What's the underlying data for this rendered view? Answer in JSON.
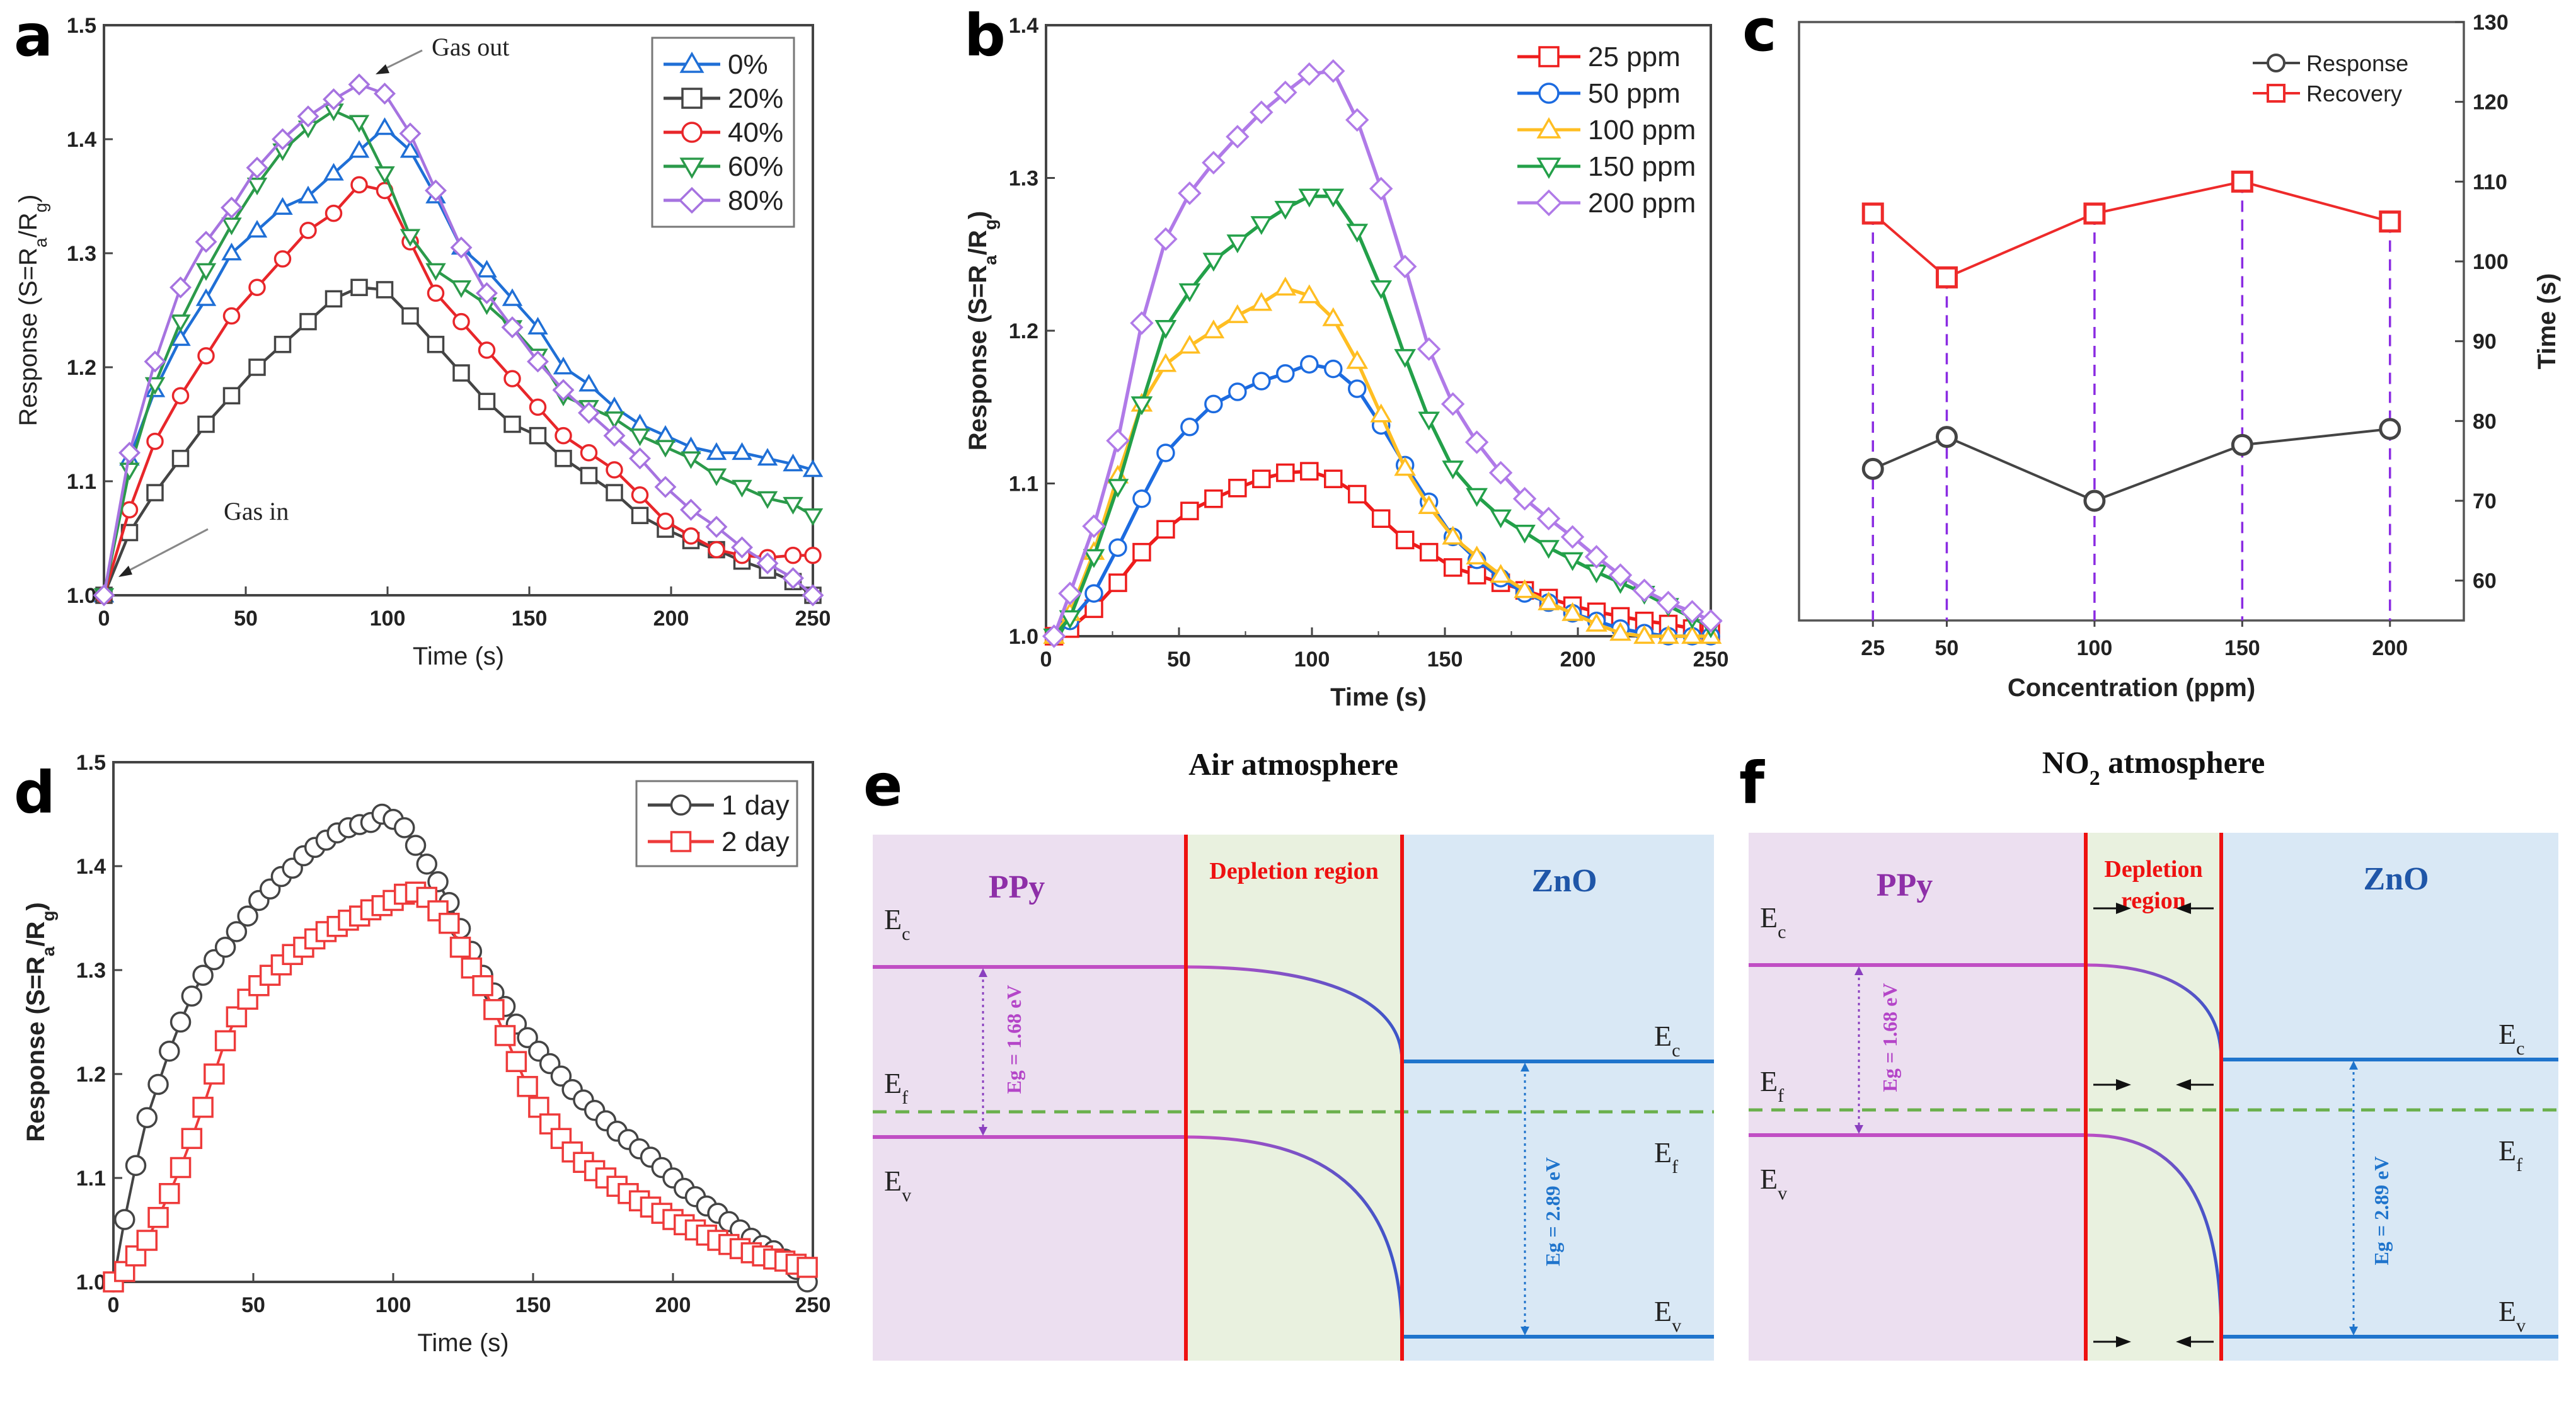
{
  "figure": {
    "panels": [
      "a",
      "b",
      "c",
      "d",
      "e",
      "f"
    ]
  },
  "chart_data": [
    {
      "id": "a",
      "panel_label": "a",
      "type": "line",
      "title": "",
      "xlabel": "Time (s)",
      "ylabel": "Response (S=Ra/Rg)",
      "xlim": [
        0,
        250
      ],
      "ylim": [
        1.0,
        1.5
      ],
      "xticks": [
        0,
        50,
        100,
        150,
        200,
        250
      ],
      "yticks": [
        1.0,
        1.1,
        1.2,
        1.3,
        1.4,
        1.5
      ],
      "grid": false,
      "legend_position": "top-right",
      "annotations": [
        {
          "text": "Gas out",
          "x": 95,
          "y": 1.445
        },
        {
          "text": "Gas in",
          "x": 2,
          "y": 1.005
        }
      ],
      "x": [
        0,
        9,
        18,
        27,
        36,
        45,
        54,
        63,
        72,
        81,
        90,
        99,
        108,
        117,
        126,
        135,
        144,
        153,
        162,
        171,
        180,
        189,
        198,
        207,
        216,
        225,
        234,
        243,
        250
      ],
      "series": [
        {
          "name": "0%",
          "color": "#1f6fd6",
          "marker": "triangle-up",
          "values": [
            1.0,
            1.12,
            1.18,
            1.225,
            1.26,
            1.3,
            1.32,
            1.34,
            1.35,
            1.37,
            1.39,
            1.41,
            1.39,
            1.35,
            1.305,
            1.285,
            1.26,
            1.235,
            1.2,
            1.185,
            1.165,
            1.15,
            1.14,
            1.13,
            1.125,
            1.125,
            1.12,
            1.115,
            1.11
          ]
        },
        {
          "name": "20%",
          "color": "#444444",
          "marker": "square",
          "values": [
            1.0,
            1.055,
            1.09,
            1.12,
            1.15,
            1.175,
            1.2,
            1.22,
            1.24,
            1.26,
            1.27,
            1.268,
            1.245,
            1.22,
            1.195,
            1.17,
            1.15,
            1.14,
            1.12,
            1.105,
            1.09,
            1.07,
            1.058,
            1.048,
            1.04,
            1.03,
            1.022,
            1.012,
            1.0
          ]
        },
        {
          "name": "40%",
          "color": "#e8262a",
          "marker": "circle",
          "values": [
            1.0,
            1.075,
            1.135,
            1.175,
            1.21,
            1.245,
            1.27,
            1.295,
            1.32,
            1.335,
            1.36,
            1.355,
            1.31,
            1.265,
            1.24,
            1.215,
            1.19,
            1.165,
            1.14,
            1.125,
            1.11,
            1.088,
            1.065,
            1.052,
            1.04,
            1.035,
            1.033,
            1.035,
            1.035
          ]
        },
        {
          "name": "60%",
          "color": "#2b9a4a",
          "marker": "triangle-down",
          "values": [
            1.0,
            1.11,
            1.185,
            1.24,
            1.285,
            1.325,
            1.36,
            1.39,
            1.41,
            1.425,
            1.415,
            1.37,
            1.315,
            1.285,
            1.27,
            1.255,
            1.235,
            1.21,
            1.175,
            1.165,
            1.155,
            1.14,
            1.13,
            1.12,
            1.105,
            1.095,
            1.085,
            1.08,
            1.07
          ]
        },
        {
          "name": "80%",
          "color": "#a673e0",
          "marker": "diamond",
          "values": [
            1.0,
            1.125,
            1.205,
            1.27,
            1.31,
            1.34,
            1.375,
            1.4,
            1.42,
            1.435,
            1.448,
            1.44,
            1.405,
            1.355,
            1.305,
            1.265,
            1.235,
            1.205,
            1.18,
            1.16,
            1.14,
            1.12,
            1.095,
            1.075,
            1.06,
            1.042,
            1.028,
            1.015,
            1.0
          ]
        }
      ]
    },
    {
      "id": "b",
      "panel_label": "b",
      "type": "line",
      "title": "",
      "xlabel": "Time (s)",
      "ylabel": "Response (S=Ra/Rg)",
      "xlim": [
        0,
        250
      ],
      "ylim": [
        1.0,
        1.4
      ],
      "xticks": [
        0,
        50,
        100,
        150,
        200,
        250
      ],
      "yticks": [
        1.0,
        1.1,
        1.2,
        1.3,
        1.4
      ],
      "grid": false,
      "legend_position": "top-right",
      "x": [
        3,
        9,
        18,
        27,
        36,
        45,
        54,
        63,
        72,
        81,
        90,
        99,
        108,
        117,
        126,
        135,
        144,
        153,
        162,
        171,
        180,
        189,
        198,
        207,
        216,
        225,
        234,
        243,
        250
      ],
      "series": [
        {
          "name": "25 ppm",
          "color": "#ee1c1c",
          "marker": "square",
          "values": [
            1.0,
            1.005,
            1.018,
            1.035,
            1.055,
            1.07,
            1.082,
            1.09,
            1.097,
            1.103,
            1.107,
            1.108,
            1.103,
            1.093,
            1.077,
            1.063,
            1.055,
            1.045,
            1.04,
            1.035,
            1.03,
            1.025,
            1.02,
            1.016,
            1.013,
            1.01,
            1.008,
            1.005,
            1.003
          ]
        },
        {
          "name": "50 ppm",
          "color": "#1c6be0",
          "marker": "circle",
          "values": [
            1.0,
            1.01,
            1.028,
            1.058,
            1.09,
            1.12,
            1.137,
            1.152,
            1.16,
            1.167,
            1.172,
            1.178,
            1.175,
            1.162,
            1.138,
            1.112,
            1.088,
            1.065,
            1.05,
            1.038,
            1.028,
            1.022,
            1.015,
            1.01,
            1.005,
            1.002,
            1.0,
            0.998,
            0.997
          ]
        },
        {
          "name": "100 ppm",
          "color": "#ffbe22",
          "marker": "triangle-up",
          "values": [
            1.0,
            1.015,
            1.055,
            1.105,
            1.152,
            1.178,
            1.19,
            1.2,
            1.21,
            1.218,
            1.228,
            1.223,
            1.208,
            1.18,
            1.145,
            1.11,
            1.085,
            1.065,
            1.052,
            1.04,
            1.03,
            1.022,
            1.015,
            1.008,
            1.002,
            0.998,
            0.996,
            0.995,
            0.994
          ]
        },
        {
          "name": "150 ppm",
          "color": "#23a049",
          "marker": "triangle-down",
          "values": [
            1.0,
            1.012,
            1.052,
            1.098,
            1.152,
            1.202,
            1.226,
            1.246,
            1.258,
            1.27,
            1.28,
            1.288,
            1.288,
            1.265,
            1.228,
            1.183,
            1.142,
            1.11,
            1.092,
            1.078,
            1.068,
            1.058,
            1.05,
            1.042,
            1.035,
            1.028,
            1.02,
            1.012,
            1.006
          ]
        },
        {
          "name": "200 ppm",
          "color": "#b07ae8",
          "marker": "diamond",
          "values": [
            1.0,
            1.028,
            1.072,
            1.128,
            1.205,
            1.26,
            1.29,
            1.31,
            1.327,
            1.343,
            1.356,
            1.368,
            1.37,
            1.338,
            1.293,
            1.242,
            1.188,
            1.152,
            1.127,
            1.107,
            1.09,
            1.077,
            1.065,
            1.052,
            1.04,
            1.03,
            1.022,
            1.016,
            1.01
          ]
        }
      ]
    },
    {
      "id": "c",
      "panel_label": "c",
      "type": "line",
      "title": "",
      "xlabel": "Concentration (ppm)",
      "ylabel": "Time (s)",
      "ylabel_side": "right",
      "categories": [
        "25",
        "50",
        "100",
        "150",
        "200"
      ],
      "x": [
        25,
        50,
        100,
        150,
        200
      ],
      "xlim": [
        0,
        225
      ],
      "ylim": [
        55,
        130
      ],
      "yticks": [
        60,
        70,
        80,
        90,
        100,
        110,
        120,
        130
      ],
      "grid": false,
      "legend_position": "top-right",
      "guide_lines": "dashed vertical at each concentration",
      "series": [
        {
          "name": "Response",
          "color": "#444444",
          "marker": "circle",
          "values": [
            74,
            78,
            70,
            77,
            79
          ]
        },
        {
          "name": "Recovery",
          "color": "#ee2a2a",
          "marker": "square",
          "values": [
            106,
            98,
            106,
            110,
            105
          ]
        }
      ]
    },
    {
      "id": "d",
      "panel_label": "d",
      "type": "line",
      "title": "",
      "xlabel": "Time (s)",
      "ylabel": "Response (S=Ra/Rg)",
      "xlim": [
        0,
        250
      ],
      "ylim": [
        1.0,
        1.5
      ],
      "xticks": [
        0,
        50,
        100,
        150,
        200,
        250
      ],
      "yticks": [
        1.0,
        1.1,
        1.2,
        1.3,
        1.4,
        1.5
      ],
      "grid": false,
      "legend_position": "top-right",
      "series": [
        {
          "name": "1 day",
          "color": "#444444",
          "marker": "circle",
          "x": [
            0,
            4,
            8,
            12,
            16,
            20,
            24,
            28,
            32,
            36,
            40,
            44,
            48,
            52,
            56,
            60,
            64,
            68,
            72,
            76,
            80,
            84,
            88,
            92,
            96,
            100,
            104,
            108,
            112,
            116,
            120,
            124,
            128,
            132,
            136,
            140,
            144,
            148,
            152,
            156,
            160,
            164,
            168,
            172,
            176,
            180,
            184,
            188,
            192,
            196,
            200,
            204,
            208,
            212,
            216,
            220,
            224,
            228,
            232,
            236,
            240,
            244,
            248
          ],
          "values": [
            1.0,
            1.06,
            1.112,
            1.158,
            1.19,
            1.222,
            1.25,
            1.275,
            1.295,
            1.31,
            1.322,
            1.337,
            1.352,
            1.367,
            1.378,
            1.39,
            1.398,
            1.41,
            1.418,
            1.425,
            1.432,
            1.437,
            1.44,
            1.442,
            1.45,
            1.445,
            1.437,
            1.42,
            1.402,
            1.385,
            1.365,
            1.34,
            1.318,
            1.295,
            1.278,
            1.265,
            1.248,
            1.235,
            1.222,
            1.21,
            1.198,
            1.185,
            1.175,
            1.165,
            1.155,
            1.145,
            1.137,
            1.128,
            1.12,
            1.11,
            1.1,
            1.09,
            1.082,
            1.073,
            1.066,
            1.058,
            1.05,
            1.042,
            1.035,
            1.03,
            1.022,
            1.012,
            1.0
          ]
        },
        {
          "name": "2 day",
          "color": "#ee3a3a",
          "marker": "square",
          "x": [
            0,
            4,
            8,
            12,
            16,
            20,
            24,
            28,
            32,
            36,
            40,
            44,
            48,
            52,
            56,
            60,
            64,
            68,
            72,
            76,
            80,
            84,
            88,
            92,
            96,
            100,
            104,
            108,
            112,
            116,
            120,
            124,
            128,
            132,
            136,
            140,
            144,
            148,
            152,
            156,
            160,
            164,
            168,
            172,
            176,
            180,
            184,
            188,
            192,
            196,
            200,
            204,
            208,
            212,
            216,
            220,
            224,
            228,
            232,
            236,
            240,
            244,
            248
          ],
          "values": [
            1.0,
            1.01,
            1.025,
            1.04,
            1.062,
            1.085,
            1.11,
            1.138,
            1.168,
            1.2,
            1.232,
            1.255,
            1.272,
            1.285,
            1.295,
            1.305,
            1.315,
            1.322,
            1.33,
            1.337,
            1.342,
            1.348,
            1.352,
            1.358,
            1.362,
            1.367,
            1.373,
            1.375,
            1.37,
            1.357,
            1.345,
            1.322,
            1.302,
            1.285,
            1.262,
            1.237,
            1.212,
            1.188,
            1.168,
            1.152,
            1.138,
            1.125,
            1.115,
            1.107,
            1.1,
            1.092,
            1.085,
            1.078,
            1.072,
            1.066,
            1.06,
            1.055,
            1.05,
            1.045,
            1.04,
            1.036,
            1.032,
            1.028,
            1.025,
            1.022,
            1.02,
            1.017,
            1.014
          ]
        }
      ]
    }
  ],
  "diagrams": {
    "e": {
      "panel_label": "e",
      "title": "Air atmosphere",
      "title_sub": "",
      "regions": {
        "ppy": {
          "label": "PPy",
          "color": "#ecdff0",
          "text_color": "#8e2fa8"
        },
        "depletion": {
          "label_lines": [
            "Depletion region"
          ],
          "color": "#e9f1df",
          "text_color": "#ee1111"
        },
        "zno": {
          "label": "ZnO",
          "color": "#d9e8f5",
          "text_color": "#1f56a8"
        }
      },
      "levels_left": {
        "ec": "E",
        "ec_sub": "c",
        "ef": "E",
        "ef_sub": "f",
        "ev": "E",
        "ev_sub": "v"
      },
      "levels_right": {
        "ec": "E",
        "ec_sub": "c",
        "ef": "E",
        "ef_sub": "f",
        "ev": "E",
        "ev_sub": "v"
      },
      "eg_left": "Eg = 1.68 eV",
      "eg_right": "Eg = 2.89 eV",
      "depletion_width": "wide",
      "narrowing_arrows": false
    },
    "f": {
      "panel_label": "f",
      "title": "NO",
      "title_sub": "2",
      "title_rest": " atmosphere",
      "regions": {
        "ppy": {
          "label": "PPy",
          "color": "#ecdff0",
          "text_color": "#8e2fa8"
        },
        "depletion": {
          "label_lines": [
            "Depletion",
            "region"
          ],
          "color": "#e9f1df",
          "text_color": "#ee1111"
        },
        "zno": {
          "label": "ZnO",
          "color": "#d9e8f5",
          "text_color": "#1f56a8"
        }
      },
      "levels_left": {
        "ec": "E",
        "ec_sub": "c",
        "ef": "E",
        "ef_sub": "f",
        "ev": "E",
        "ev_sub": "v"
      },
      "levels_right": {
        "ec": "E",
        "ec_sub": "c",
        "ef": "E",
        "ef_sub": "f",
        "ev": "E",
        "ev_sub": "v"
      },
      "eg_left": "Eg = 1.68 eV",
      "eg_right": "Eg = 2.89 eV",
      "depletion_width": "narrow",
      "narrowing_arrows": true
    }
  },
  "colors": {
    "band_ppy": "#c04ec4",
    "band_zno": "#1f74cc",
    "fermi_dash": "#6ab04c",
    "interface": "#ee1111",
    "eg_left": "#b445c8",
    "eg_right": "#1f74cc",
    "axis": "#444444",
    "guide_dash": "#8a2be2"
  }
}
